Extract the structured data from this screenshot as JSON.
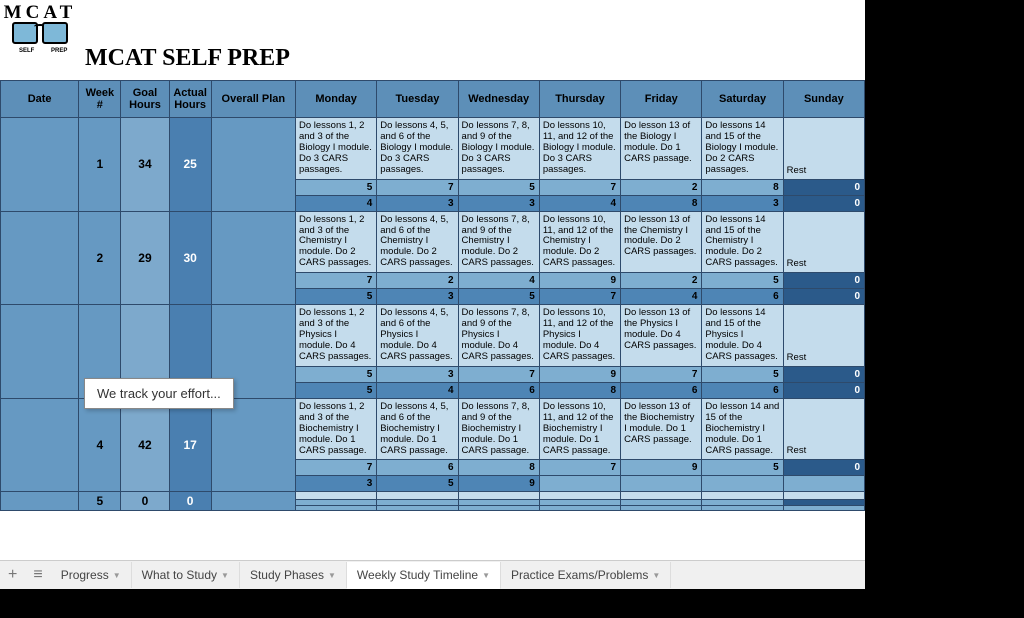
{
  "title": "MCAT SELF PREP",
  "logoTop": "MCAT",
  "headers": {
    "date": "Date",
    "week": "Week #",
    "goal": "Goal Hours",
    "actual": "Actual Hours",
    "plan": "Overall Plan",
    "mon": "Monday",
    "tue": "Tuesday",
    "wed": "Wednesday",
    "thu": "Thursday",
    "fri": "Friday",
    "sat": "Saturday",
    "sun": "Sunday"
  },
  "rest": "Rest",
  "weeks": [
    {
      "num": "1",
      "goal": "34",
      "actual": "25",
      "lessons": [
        "Do lessons 1, 2 and 3 of the Biology I module. Do 3 CARS passages.",
        "Do lessons 4, 5, and 6 of the Biology I module. Do 3 CARS passages.",
        "Do lessons 7, 8, and 9 of the Biology I module. Do 3 CARS passages.",
        "Do lessons 10, 11, and 12 of the Biology I module. Do 3 CARS passages.",
        "Do lesson 13 of the Biology I module. Do 1 CARS passage.",
        "Do lessons 14 and 15 of the Biology I module. Do 2 CARS passages."
      ],
      "row1": [
        "5",
        "7",
        "5",
        "7",
        "2",
        "8",
        "0"
      ],
      "row2": [
        "4",
        "3",
        "3",
        "4",
        "8",
        "3",
        "0"
      ]
    },
    {
      "num": "2",
      "goal": "29",
      "actual": "30",
      "lessons": [
        "Do lessons 1, 2 and 3 of the Chemistry I module. Do 2 CARS passages.",
        "Do lessons 4, 5, and 6 of the Chemistry I module. Do 2 CARS passages.",
        "Do lessons 7, 8, and 9 of the Chemistry I module. Do 2 CARS passages.",
        "Do lessons 10, 11, and 12 of the Chemistry I module. Do 2 CARS passages.",
        "Do lesson 13 of the Chemistry I module. Do 2 CARS passages.",
        "Do lessons 14 and 15 of the Chemistry I module. Do 2 CARS passages."
      ],
      "row1": [
        "7",
        "2",
        "4",
        "9",
        "2",
        "5",
        "0"
      ],
      "row2": [
        "5",
        "3",
        "5",
        "7",
        "4",
        "6",
        "0"
      ]
    },
    {
      "num": "",
      "goal": "",
      "actual": "",
      "lessons": [
        "Do lessons 1, 2 and 3 of the Physics I module. Do 4 CARS passages.",
        "Do lessons 4, 5, and 6 of the Physics I module. Do 4 CARS passages.",
        "Do lessons 7, 8, and 9 of the Physics I module. Do 4 CARS passages.",
        "Do lessons 10, 11, and 12 of the Physics I module. Do 4 CARS passages.",
        "Do lesson 13 of the Physics I module. Do 4 CARS passages.",
        "Do lessons 14 and 15 of the Physics I module. Do 4 CARS passages."
      ],
      "row1": [
        "5",
        "3",
        "7",
        "9",
        "7",
        "5",
        "0"
      ],
      "row2": [
        "5",
        "4",
        "6",
        "8",
        "6",
        "6",
        "0"
      ]
    },
    {
      "num": "4",
      "goal": "42",
      "actual": "17",
      "lessons": [
        "Do lessons 1, 2 and 3 of the Biochemistry I module. Do 1 CARS passage.",
        "Do lessons 4, 5, and 6 of the Biochemistry I module. Do 1 CARS passage.",
        "Do lessons 7, 8, and 9 of the Biochemistry I module. Do 1 CARS passage.",
        "Do lessons 10, 11, and 12 of the Biochemistry I module. Do 1 CARS passage.",
        "Do lesson 13 of the Biochemistry I module. Do 1 CARS passage.",
        "Do lesson 14 and 15 of the Biochemistry I module. Do 1 CARS passage."
      ],
      "row1": [
        "7",
        "6",
        "8",
        "7",
        "9",
        "5",
        "0"
      ],
      "row2": [
        "3",
        "5",
        "9",
        "",
        "",
        "",
        ""
      ]
    },
    {
      "num": "5",
      "goal": "0",
      "actual": "0",
      "lessons": [
        "",
        "",
        "",
        "",
        "",
        ""
      ],
      "row1": [
        "",
        "",
        "",
        "",
        "",
        "",
        ""
      ],
      "row2": [
        "",
        "",
        "",
        "",
        "",
        "",
        ""
      ]
    }
  ],
  "tooltip": "We track your effort...",
  "tabs": {
    "progress": "Progress",
    "study": "What to Study",
    "phases": "Study Phases",
    "timeline": "Weekly Study Timeline",
    "practice": "Practice Exams/Problems"
  }
}
